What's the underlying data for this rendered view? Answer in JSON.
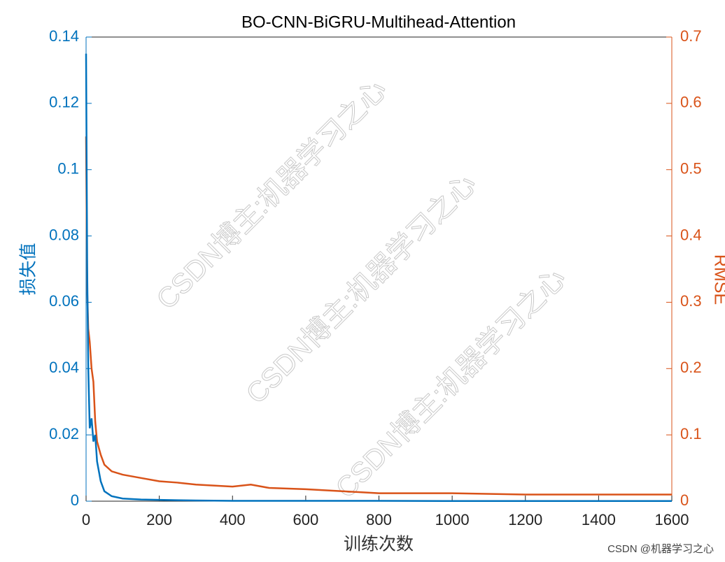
{
  "chart_data": {
    "type": "line",
    "title": "BO-CNN-BiGRU-Multihead-Attention",
    "x_label": "训练次数",
    "y_label": "损失值",
    "y2_label": "RMSE",
    "x": [
      0,
      3,
      6,
      10,
      15,
      20,
      25,
      30,
      40,
      50,
      70,
      100,
      150,
      200,
      250,
      300,
      400,
      450,
      500,
      600,
      700,
      800,
      1000,
      1200,
      1400,
      1600
    ],
    "series": [
      {
        "name": "损失值",
        "color": "#0072BD",
        "axis": "y",
        "values": [
          0.135,
          0.07,
          0.04,
          0.022,
          0.025,
          0.018,
          0.02,
          0.012,
          0.006,
          0.003,
          0.0015,
          0.0008,
          0.0005,
          0.0004,
          0.0003,
          0.0002,
          0.0001,
          0.0001,
          0.0001,
          0.0001,
          0.0001,
          0.0001,
          5e-05,
          5e-05,
          5e-05,
          5e-05
        ]
      },
      {
        "name": "RMSE",
        "color": "#D95319",
        "axis": "y2",
        "values": [
          0.55,
          0.32,
          0.26,
          0.24,
          0.2,
          0.18,
          0.12,
          0.09,
          0.07,
          0.055,
          0.045,
          0.04,
          0.035,
          0.03,
          0.028,
          0.025,
          0.022,
          0.025,
          0.02,
          0.018,
          0.015,
          0.012,
          0.012,
          0.01,
          0.01,
          0.01
        ]
      }
    ],
    "xlim": [
      0,
      1600
    ],
    "xticks": [
      0,
      200,
      400,
      600,
      800,
      1000,
      1200,
      1400,
      1600
    ],
    "ylim": [
      0,
      0.14
    ],
    "yticks": [
      0,
      0.02,
      0.04,
      0.06,
      0.08,
      0.1,
      0.12,
      0.14
    ],
    "y2lim": [
      0,
      0.7
    ],
    "y2ticks": [
      0,
      0.1,
      0.2,
      0.3,
      0.4,
      0.5,
      0.6,
      0.7
    ],
    "watermarks": [
      "CSDN博主:机器学习之心",
      "CSDN博主:机器学习之心",
      "CSDN博主:机器学习之心"
    ],
    "footer": "CSDN @机器学习之心"
  }
}
